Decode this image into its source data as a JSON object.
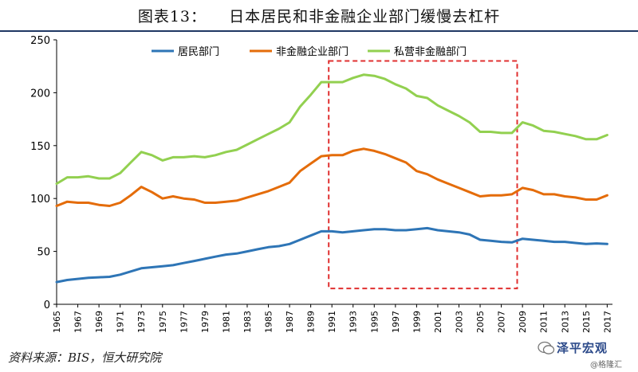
{
  "title": "图表13：    日本居民和非金融企业部门缓慢去杠杆",
  "source": "资料来源：BIS，恒大研究院",
  "watermark": {
    "name": "泽平宏观",
    "sub": "@格隆汇"
  },
  "colors": {
    "household": "#2e75b6",
    "nonfin": "#e46c0a",
    "private": "#92d050",
    "highlight": "#e03030",
    "axis": "#000000"
  },
  "chart_data": {
    "type": "line",
    "xlim": [
      1965,
      2017.5
    ],
    "ylim": [
      0,
      250
    ],
    "yticks": [
      0,
      50,
      100,
      150,
      200,
      250
    ],
    "xticks": [
      1965,
      1967,
      1969,
      1971,
      1973,
      1975,
      1977,
      1979,
      1981,
      1983,
      1985,
      1987,
      1989,
      1991,
      1993,
      1995,
      1997,
      1999,
      2001,
      2003,
      2005,
      2007,
      2009,
      2011,
      2013,
      2015,
      2017
    ],
    "legend_position": "top",
    "highlight_region": {
      "x": [
        1990.7,
        2008.5
      ],
      "y": [
        15,
        230
      ]
    },
    "series": [
      {
        "name": "居民部门",
        "color_key": "household",
        "points": [
          [
            1965,
            21
          ],
          [
            1966,
            23
          ],
          [
            1967,
            24
          ],
          [
            1968,
            25
          ],
          [
            1969,
            25.5
          ],
          [
            1970,
            26
          ],
          [
            1971,
            28
          ],
          [
            1972,
            31
          ],
          [
            1973,
            34
          ],
          [
            1974,
            35
          ],
          [
            1975,
            36
          ],
          [
            1976,
            37
          ],
          [
            1977,
            39
          ],
          [
            1978,
            41
          ],
          [
            1979,
            43
          ],
          [
            1980,
            45
          ],
          [
            1981,
            47
          ],
          [
            1982,
            48
          ],
          [
            1983,
            50
          ],
          [
            1984,
            52
          ],
          [
            1985,
            54
          ],
          [
            1986,
            55
          ],
          [
            1987,
            57
          ],
          [
            1988,
            61
          ],
          [
            1989,
            65
          ],
          [
            1990,
            69
          ],
          [
            1991,
            69
          ],
          [
            1992,
            68
          ],
          [
            1993,
            69
          ],
          [
            1994,
            70
          ],
          [
            1995,
            71
          ],
          [
            1996,
            71
          ],
          [
            1997,
            70
          ],
          [
            1998,
            70
          ],
          [
            1999,
            71
          ],
          [
            2000,
            72
          ],
          [
            2001,
            70
          ],
          [
            2002,
            69
          ],
          [
            2003,
            68
          ],
          [
            2004,
            66
          ],
          [
            2005,
            61
          ],
          [
            2006,
            60
          ],
          [
            2007,
            59
          ],
          [
            2008,
            58.5
          ],
          [
            2009,
            62
          ],
          [
            2010,
            61
          ],
          [
            2011,
            60
          ],
          [
            2012,
            59
          ],
          [
            2013,
            59
          ],
          [
            2014,
            58
          ],
          [
            2015,
            57
          ],
          [
            2016,
            57.5
          ],
          [
            2017,
            57
          ]
        ]
      },
      {
        "name": "非金融企业部门",
        "color_key": "nonfin",
        "points": [
          [
            1965,
            93
          ],
          [
            1966,
            97
          ],
          [
            1967,
            96
          ],
          [
            1968,
            96
          ],
          [
            1969,
            94
          ],
          [
            1970,
            93
          ],
          [
            1971,
            96
          ],
          [
            1972,
            103
          ],
          [
            1973,
            111
          ],
          [
            1974,
            106
          ],
          [
            1975,
            100
          ],
          [
            1976,
            102
          ],
          [
            1977,
            100
          ],
          [
            1978,
            99
          ],
          [
            1979,
            96
          ],
          [
            1980,
            96
          ],
          [
            1981,
            97
          ],
          [
            1982,
            98
          ],
          [
            1983,
            101
          ],
          [
            1984,
            104
          ],
          [
            1985,
            107
          ],
          [
            1986,
            111
          ],
          [
            1987,
            115
          ],
          [
            1988,
            126
          ],
          [
            1989,
            133
          ],
          [
            1990,
            140
          ],
          [
            1991,
            141
          ],
          [
            1992,
            141
          ],
          [
            1993,
            145
          ],
          [
            1994,
            147
          ],
          [
            1995,
            145
          ],
          [
            1996,
            142
          ],
          [
            1997,
            138
          ],
          [
            1998,
            134
          ],
          [
            1999,
            126
          ],
          [
            2000,
            123
          ],
          [
            2001,
            118
          ],
          [
            2002,
            114
          ],
          [
            2003,
            110
          ],
          [
            2004,
            106
          ],
          [
            2005,
            102
          ],
          [
            2006,
            103
          ],
          [
            2007,
            103
          ],
          [
            2008,
            104
          ],
          [
            2009,
            110
          ],
          [
            2010,
            108
          ],
          [
            2011,
            104
          ],
          [
            2012,
            104
          ],
          [
            2013,
            102
          ],
          [
            2014,
            101
          ],
          [
            2015,
            99
          ],
          [
            2016,
            99
          ],
          [
            2017,
            103
          ]
        ]
      },
      {
        "name": "私营非金融部门",
        "color_key": "private",
        "points": [
          [
            1965,
            114
          ],
          [
            1966,
            120
          ],
          [
            1967,
            120
          ],
          [
            1968,
            121
          ],
          [
            1969,
            119
          ],
          [
            1970,
            119
          ],
          [
            1971,
            124
          ],
          [
            1972,
            134
          ],
          [
            1973,
            144
          ],
          [
            1974,
            141
          ],
          [
            1975,
            136
          ],
          [
            1976,
            139
          ],
          [
            1977,
            139
          ],
          [
            1978,
            140
          ],
          [
            1979,
            139
          ],
          [
            1980,
            141
          ],
          [
            1981,
            144
          ],
          [
            1982,
            146
          ],
          [
            1983,
            151
          ],
          [
            1984,
            156
          ],
          [
            1985,
            161
          ],
          [
            1986,
            166
          ],
          [
            1987,
            172
          ],
          [
            1988,
            187
          ],
          [
            1989,
            198
          ],
          [
            1990,
            210
          ],
          [
            1991,
            210
          ],
          [
            1992,
            210
          ],
          [
            1993,
            214
          ],
          [
            1994,
            217
          ],
          [
            1995,
            216
          ],
          [
            1996,
            213
          ],
          [
            1997,
            208
          ],
          [
            1998,
            204
          ],
          [
            1999,
            197
          ],
          [
            2000,
            195
          ],
          [
            2001,
            188
          ],
          [
            2002,
            183
          ],
          [
            2003,
            178
          ],
          [
            2004,
            172
          ],
          [
            2005,
            163
          ],
          [
            2006,
            163
          ],
          [
            2007,
            162
          ],
          [
            2008,
            162
          ],
          [
            2009,
            172
          ],
          [
            2010,
            169
          ],
          [
            2011,
            164
          ],
          [
            2012,
            163
          ],
          [
            2013,
            161
          ],
          [
            2014,
            159
          ],
          [
            2015,
            156
          ],
          [
            2016,
            156
          ],
          [
            2017,
            160
          ]
        ]
      }
    ]
  }
}
